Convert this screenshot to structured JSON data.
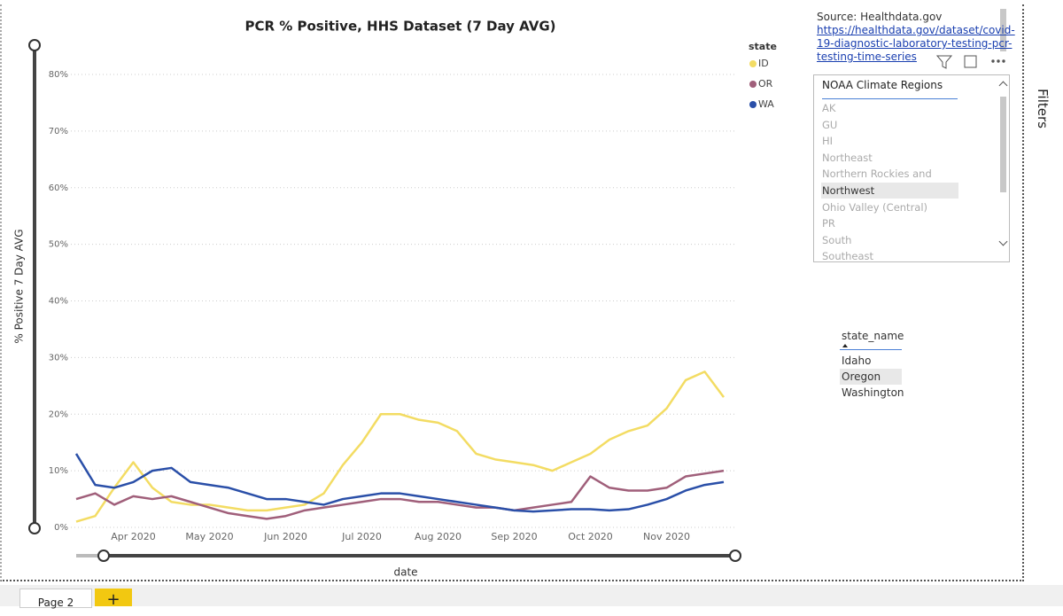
{
  "chart_data": {
    "type": "line",
    "title": "PCR % Positive, HHS Dataset (7 Day AVG)",
    "x_label": "date",
    "y_label": "% Positive 7 Day AVG",
    "legend_title": "state",
    "categories": [
      null,
      null,
      null,
      "Apr 2020",
      null,
      null,
      null,
      "May 2020",
      null,
      null,
      null,
      "Jun 2020",
      null,
      null,
      null,
      "Jul 2020",
      null,
      null,
      null,
      "Aug 2020",
      null,
      null,
      null,
      "Sep 2020",
      null,
      null,
      null,
      "Oct 2020",
      null,
      null,
      null,
      "Nov 2020",
      null,
      null,
      null
    ],
    "series": [
      {
        "name": "ID",
        "color": "#f3dc63",
        "values": [
          1,
          2,
          7,
          11.5,
          7,
          4.5,
          4,
          4,
          3.5,
          3,
          3,
          3.5,
          4,
          6,
          11,
          15,
          20,
          20,
          19,
          18.5,
          17,
          13,
          12,
          11.5,
          11,
          10,
          11.5,
          13,
          15.5,
          17,
          18,
          21,
          26,
          27.5,
          23
        ]
      },
      {
        "name": "OR",
        "color": "#a05f7a",
        "values": [
          5,
          6,
          4,
          5.5,
          5,
          5.5,
          4.5,
          3.5,
          2.5,
          2,
          1.5,
          2,
          3,
          3.5,
          4,
          4.5,
          5,
          5,
          4.5,
          4.5,
          4,
          3.5,
          3.5,
          3,
          3.5,
          4,
          4.5,
          9,
          7,
          6.5,
          6.5,
          7,
          9,
          9.5,
          10
        ]
      },
      {
        "name": "WA",
        "color": "#2a4fa8",
        "values": [
          13,
          7.5,
          7,
          8,
          10,
          10.5,
          8,
          7.5,
          7,
          6,
          5,
          5,
          4.5,
          4,
          5,
          5.5,
          6,
          6,
          5.5,
          5,
          4.5,
          4,
          3.5,
          3,
          2.8,
          3,
          3.2,
          3.2,
          3,
          3.2,
          4,
          5,
          6.5,
          7.5,
          8
        ]
      }
    ],
    "ylim": [
      0,
      80
    ],
    "yticks": [
      {
        "value": 0,
        "label": "0%"
      },
      {
        "value": 10,
        "label": "10%"
      },
      {
        "value": 20,
        "label": "20%"
      },
      {
        "value": 30,
        "label": "30%"
      },
      {
        "value": 40,
        "label": "40%"
      },
      {
        "value": 50,
        "label": "50%"
      },
      {
        "value": 60,
        "label": "60%"
      },
      {
        "value": 70,
        "label": "70%"
      },
      {
        "value": 80,
        "label": "80%"
      }
    ],
    "grid": true
  },
  "source": {
    "text": "Source: Healthdata.gov",
    "link_lines": [
      "https://healthdata.gov/dataset/covid-",
      "19-diagnostic-laboratory-testing-pcr-",
      "testing-time-series"
    ]
  },
  "slicer": {
    "title": "NOAA Climate Regions",
    "items": [
      "AK",
      "GU",
      "HI",
      "Northeast",
      "Northern Rockies and Plains",
      "Northwest",
      "Ohio Valley (Central)",
      "PR",
      "South",
      "Southeast"
    ],
    "selected": "Northwest"
  },
  "table": {
    "header": "state_name",
    "rows": [
      "Idaho",
      "Oregon",
      "Washington"
    ],
    "selected": "Oregon"
  },
  "tabs": [
    "Page 2",
    "+"
  ],
  "filters": "Filters"
}
